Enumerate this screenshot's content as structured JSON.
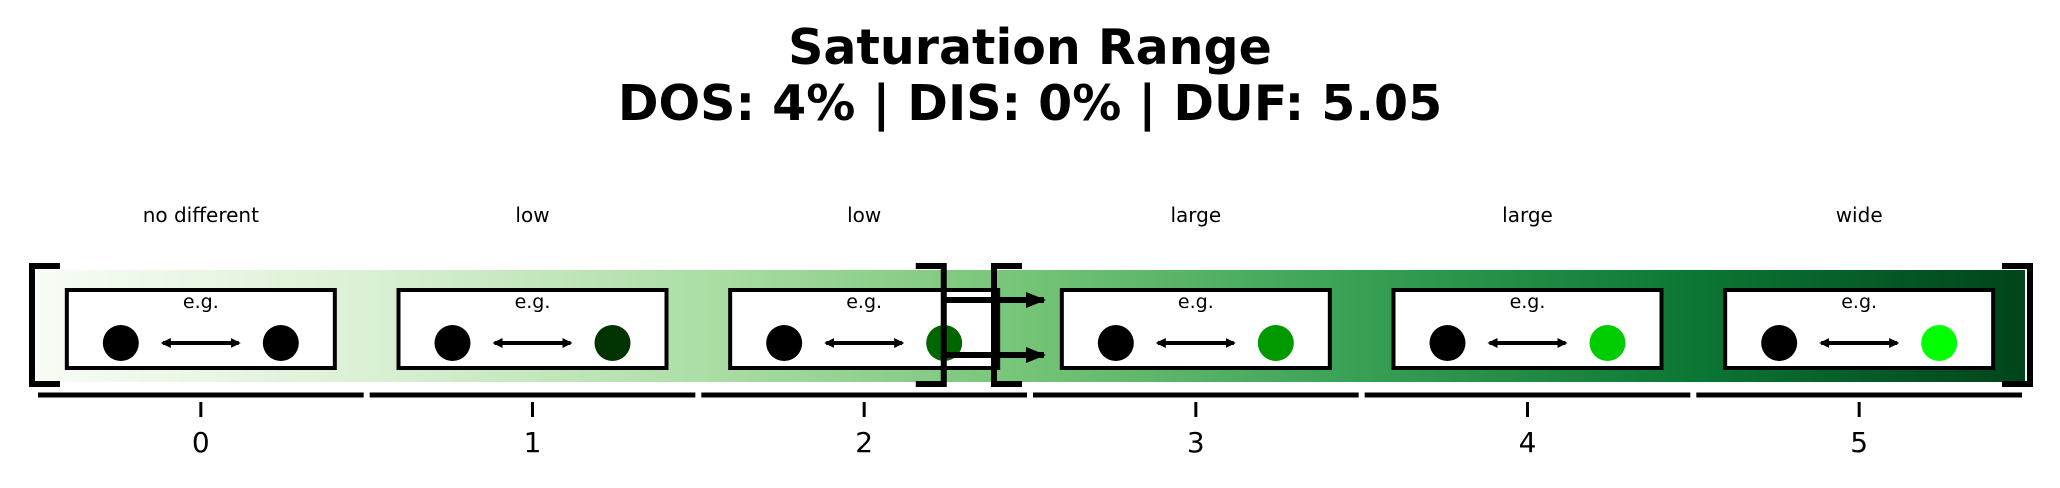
{
  "title": {
    "line1": "Saturation Range",
    "line2": "DOS: 4% | DIS: 0% | DUF: 5.05"
  },
  "colors": {
    "gradient": [
      "#f7fcf5",
      "#dbf0d4",
      "#addea7",
      "#74c476",
      "#37a055",
      "#0c7734",
      "#00441b"
    ],
    "reference_dot": "#000000",
    "example_dots": [
      "#000000",
      "#003300",
      "#006600",
      "#009900",
      "#00cc00",
      "#00ff00"
    ]
  },
  "levels": [
    {
      "tick": "0",
      "label": "no different",
      "eg": "e.g."
    },
    {
      "tick": "1",
      "label": "low",
      "eg": "e.g."
    },
    {
      "tick": "2",
      "label": "low",
      "eg": "e.g."
    },
    {
      "tick": "3",
      "label": "large",
      "eg": "e.g."
    },
    {
      "tick": "4",
      "label": "large",
      "eg": "e.g."
    },
    {
      "tick": "5",
      "label": "wide",
      "eg": "e.g."
    }
  ],
  "brackets": {
    "range_a": {
      "from_level": 0,
      "to_level": 2
    },
    "range_b": {
      "from_level": 3,
      "to_level": 5
    }
  }
}
